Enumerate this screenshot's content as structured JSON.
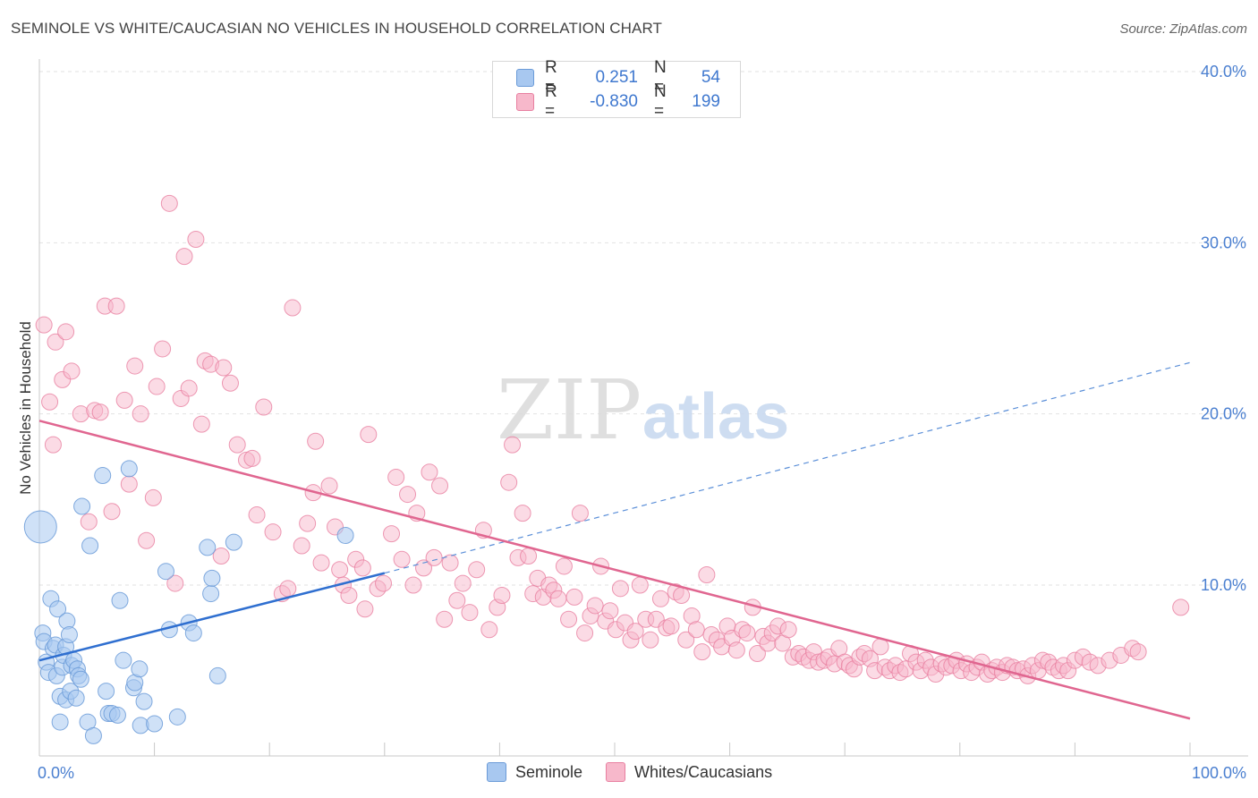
{
  "header": {
    "title": "SEMINOLE VS WHITE/CAUCASIAN NO VEHICLES IN HOUSEHOLD CORRELATION CHART",
    "source": "Source: ZipAtlas.com"
  },
  "watermark": {
    "zip": "ZIP",
    "atlas": "atlas"
  },
  "legend": {
    "rows": [
      {
        "r_label": "R =",
        "r_value": "0.251",
        "n_label": "N =",
        "n_value": "54",
        "color": "#a8c8f0",
        "edge": "#6b9bd8"
      },
      {
        "r_label": "R =",
        "r_value": "-0.830",
        "n_label": "N =",
        "n_value": "199",
        "color": "#f7b8cb",
        "edge": "#e87fa0"
      }
    ]
  },
  "bottom_legend": [
    {
      "label": "Seminole",
      "color": "#a8c8f0",
      "edge": "#6b9bd8"
    },
    {
      "label": "Whites/Caucasians",
      "color": "#f7b8cb",
      "edge": "#e87fa0"
    }
  ],
  "chart_data": {
    "type": "scatter",
    "title": "SEMINOLE VS WHITE/CAUCASIAN NO VEHICLES IN HOUSEHOLD CORRELATION CHART",
    "xlabel": "",
    "ylabel": "No Vehicles in Household",
    "xlim": [
      0,
      100
    ],
    "ylim": [
      0,
      42
    ],
    "x_tick_labels": [
      {
        "value": 0,
        "label": "0.0%"
      },
      {
        "value": 100,
        "label": "100.0%"
      }
    ],
    "y_tick_labels": [
      {
        "value": 10,
        "label": "10.0%"
      },
      {
        "value": 20,
        "label": "20.0%"
      },
      {
        "value": 30,
        "label": "30.0%"
      },
      {
        "value": 40,
        "label": "40.0%"
      }
    ],
    "grid": true,
    "series": [
      {
        "name": "Seminole",
        "color": "#a8c8f0",
        "edge": "#6b9bd8",
        "trend": {
          "x": [
            0,
            30
          ],
          "y": [
            5.6,
            10.7
          ],
          "dashed_extension_to": [
            100,
            23
          ]
        },
        "points": [
          [
            0.1,
            13.4
          ],
          [
            0.3,
            7.2
          ],
          [
            0.4,
            6.7
          ],
          [
            0.6,
            5.5
          ],
          [
            0.8,
            4.9
          ],
          [
            1.0,
            9.2
          ],
          [
            1.2,
            6.3
          ],
          [
            1.4,
            6.5
          ],
          [
            1.5,
            4.7
          ],
          [
            1.6,
            8.6
          ],
          [
            1.8,
            3.5
          ],
          [
            1.8,
            2.0
          ],
          [
            2.0,
            5.2
          ],
          [
            2.1,
            5.9
          ],
          [
            2.3,
            3.3
          ],
          [
            2.3,
            6.4
          ],
          [
            2.4,
            7.9
          ],
          [
            2.6,
            7.1
          ],
          [
            2.7,
            3.8
          ],
          [
            2.8,
            5.3
          ],
          [
            3.0,
            5.6
          ],
          [
            3.2,
            3.4
          ],
          [
            3.3,
            5.1
          ],
          [
            3.4,
            4.7
          ],
          [
            3.6,
            4.5
          ],
          [
            3.7,
            14.6
          ],
          [
            4.2,
            2.0
          ],
          [
            4.4,
            12.3
          ],
          [
            4.7,
            1.2
          ],
          [
            5.5,
            16.4
          ],
          [
            5.8,
            3.8
          ],
          [
            6.0,
            2.5
          ],
          [
            6.3,
            2.5
          ],
          [
            6.8,
            2.4
          ],
          [
            7.0,
            9.1
          ],
          [
            7.3,
            5.6
          ],
          [
            7.8,
            16.8
          ],
          [
            8.2,
            4.0
          ],
          [
            8.3,
            4.3
          ],
          [
            8.7,
            5.1
          ],
          [
            8.8,
            1.8
          ],
          [
            9.1,
            3.2
          ],
          [
            10.0,
            1.9
          ],
          [
            11.0,
            10.8
          ],
          [
            11.3,
            7.4
          ],
          [
            12.0,
            2.3
          ],
          [
            13.0,
            7.8
          ],
          [
            13.4,
            7.2
          ],
          [
            14.6,
            12.2
          ],
          [
            14.9,
            9.5
          ],
          [
            15.0,
            10.4
          ],
          [
            15.5,
            4.7
          ],
          [
            16.9,
            12.5
          ],
          [
            26.6,
            12.9
          ]
        ]
      },
      {
        "name": "Whites/Caucasians",
        "color": "#f7b8cb",
        "edge": "#e87fa0",
        "trend": {
          "x": [
            0,
            100
          ],
          "y": [
            19.6,
            2.2
          ]
        },
        "points": [
          [
            0.4,
            25.2
          ],
          [
            0.9,
            20.7
          ],
          [
            1.2,
            18.2
          ],
          [
            1.4,
            24.2
          ],
          [
            2.0,
            22.0
          ],
          [
            2.3,
            24.8
          ],
          [
            2.8,
            22.5
          ],
          [
            3.6,
            20.0
          ],
          [
            4.3,
            13.7
          ],
          [
            4.8,
            20.2
          ],
          [
            5.3,
            20.1
          ],
          [
            5.7,
            26.3
          ],
          [
            6.3,
            14.3
          ],
          [
            6.7,
            26.3
          ],
          [
            7.4,
            20.8
          ],
          [
            7.8,
            15.9
          ],
          [
            8.3,
            22.8
          ],
          [
            8.8,
            20.0
          ],
          [
            9.3,
            12.6
          ],
          [
            9.9,
            15.1
          ],
          [
            10.2,
            21.6
          ],
          [
            10.7,
            23.8
          ],
          [
            11.3,
            32.3
          ],
          [
            11.8,
            10.1
          ],
          [
            12.3,
            20.9
          ],
          [
            12.6,
            29.2
          ],
          [
            13.0,
            21.5
          ],
          [
            13.6,
            30.2
          ],
          [
            14.1,
            19.4
          ],
          [
            14.4,
            23.1
          ],
          [
            14.9,
            22.9
          ],
          [
            15.8,
            11.7
          ],
          [
            16.0,
            22.7
          ],
          [
            16.6,
            21.8
          ],
          [
            17.2,
            18.2
          ],
          [
            18.0,
            17.3
          ],
          [
            18.5,
            17.4
          ],
          [
            18.9,
            14.1
          ],
          [
            19.5,
            20.4
          ],
          [
            20.3,
            13.1
          ],
          [
            21.1,
            9.5
          ],
          [
            21.6,
            9.8
          ],
          [
            22.0,
            26.2
          ],
          [
            22.8,
            12.3
          ],
          [
            23.3,
            13.6
          ],
          [
            23.8,
            15.4
          ],
          [
            24.0,
            18.4
          ],
          [
            24.5,
            11.3
          ],
          [
            25.2,
            15.8
          ],
          [
            25.7,
            13.4
          ],
          [
            26.1,
            10.9
          ],
          [
            26.4,
            10.0
          ],
          [
            26.9,
            9.4
          ],
          [
            27.5,
            11.5
          ],
          [
            28.1,
            11.0
          ],
          [
            28.3,
            8.6
          ],
          [
            28.6,
            18.8
          ],
          [
            29.4,
            9.8
          ],
          [
            29.9,
            10.1
          ],
          [
            30.6,
            13.0
          ],
          [
            31.0,
            16.3
          ],
          [
            31.5,
            11.5
          ],
          [
            32.0,
            15.3
          ],
          [
            32.5,
            10.0
          ],
          [
            32.8,
            14.2
          ],
          [
            33.4,
            11.0
          ],
          [
            33.9,
            16.6
          ],
          [
            34.3,
            11.6
          ],
          [
            34.8,
            15.8
          ],
          [
            35.2,
            8.0
          ],
          [
            35.7,
            11.3
          ],
          [
            36.3,
            9.1
          ],
          [
            36.8,
            10.1
          ],
          [
            37.4,
            8.4
          ],
          [
            38.0,
            10.9
          ],
          [
            38.6,
            13.2
          ],
          [
            39.1,
            7.4
          ],
          [
            39.8,
            8.7
          ],
          [
            40.2,
            9.4
          ],
          [
            40.8,
            16.0
          ],
          [
            41.1,
            18.2
          ],
          [
            41.6,
            11.6
          ],
          [
            42.0,
            14.2
          ],
          [
            42.5,
            11.7
          ],
          [
            42.9,
            9.5
          ],
          [
            43.3,
            10.4
          ],
          [
            43.8,
            9.3
          ],
          [
            44.3,
            10.0
          ],
          [
            44.7,
            9.7
          ],
          [
            45.1,
            9.2
          ],
          [
            45.6,
            11.1
          ],
          [
            46.0,
            8.0
          ],
          [
            46.5,
            9.3
          ],
          [
            47.0,
            14.2
          ],
          [
            47.4,
            7.2
          ],
          [
            47.9,
            8.2
          ],
          [
            48.3,
            8.8
          ],
          [
            48.8,
            11.1
          ],
          [
            49.2,
            7.9
          ],
          [
            49.6,
            8.5
          ],
          [
            50.1,
            7.4
          ],
          [
            50.5,
            9.8
          ],
          [
            50.9,
            7.8
          ],
          [
            51.4,
            6.8
          ],
          [
            51.8,
            7.3
          ],
          [
            52.2,
            10.0
          ],
          [
            52.7,
            8.0
          ],
          [
            53.1,
            6.8
          ],
          [
            53.6,
            8.0
          ],
          [
            54.0,
            9.2
          ],
          [
            54.5,
            7.5
          ],
          [
            54.9,
            7.6
          ],
          [
            55.3,
            9.6
          ],
          [
            55.8,
            9.4
          ],
          [
            56.2,
            6.8
          ],
          [
            56.7,
            8.2
          ],
          [
            57.1,
            7.4
          ],
          [
            57.6,
            6.1
          ],
          [
            58.0,
            10.6
          ],
          [
            58.4,
            7.1
          ],
          [
            58.9,
            6.8
          ],
          [
            59.3,
            6.4
          ],
          [
            59.8,
            7.6
          ],
          [
            60.2,
            6.9
          ],
          [
            60.6,
            6.2
          ],
          [
            61.1,
            7.4
          ],
          [
            61.5,
            7.2
          ],
          [
            62.0,
            8.7
          ],
          [
            62.4,
            6.0
          ],
          [
            62.9,
            7.0
          ],
          [
            63.3,
            6.6
          ],
          [
            63.7,
            7.2
          ],
          [
            64.2,
            7.6
          ],
          [
            64.6,
            6.6
          ],
          [
            65.1,
            7.4
          ],
          [
            65.5,
            5.8
          ],
          [
            66.0,
            6.0
          ],
          [
            66.4,
            5.8
          ],
          [
            66.9,
            5.6
          ],
          [
            67.3,
            6.1
          ],
          [
            67.7,
            5.5
          ],
          [
            68.2,
            5.6
          ],
          [
            68.6,
            5.8
          ],
          [
            69.1,
            5.4
          ],
          [
            69.5,
            6.3
          ],
          [
            70.0,
            5.5
          ],
          [
            70.4,
            5.3
          ],
          [
            70.8,
            5.1
          ],
          [
            71.3,
            5.8
          ],
          [
            71.7,
            6.0
          ],
          [
            72.2,
            5.7
          ],
          [
            72.6,
            5.0
          ],
          [
            73.1,
            6.4
          ],
          [
            73.5,
            5.2
          ],
          [
            73.9,
            5.0
          ],
          [
            74.4,
            5.3
          ],
          [
            74.8,
            4.9
          ],
          [
            75.3,
            5.1
          ],
          [
            75.7,
            6.0
          ],
          [
            76.2,
            5.5
          ],
          [
            76.6,
            5.0
          ],
          [
            77.0,
            5.6
          ],
          [
            77.5,
            5.2
          ],
          [
            77.9,
            4.8
          ],
          [
            78.4,
            5.4
          ],
          [
            78.8,
            5.2
          ],
          [
            79.3,
            5.3
          ],
          [
            79.7,
            5.6
          ],
          [
            80.1,
            5.0
          ],
          [
            80.6,
            5.4
          ],
          [
            81.0,
            4.9
          ],
          [
            81.5,
            5.2
          ],
          [
            81.9,
            5.5
          ],
          [
            82.4,
            4.8
          ],
          [
            82.8,
            5.0
          ],
          [
            83.2,
            5.2
          ],
          [
            83.7,
            4.9
          ],
          [
            84.1,
            5.3
          ],
          [
            84.6,
            5.2
          ],
          [
            85.0,
            5.0
          ],
          [
            85.5,
            5.1
          ],
          [
            85.9,
            4.7
          ],
          [
            86.3,
            5.3
          ],
          [
            86.8,
            5.0
          ],
          [
            87.2,
            5.6
          ],
          [
            87.7,
            5.5
          ],
          [
            88.1,
            5.2
          ],
          [
            88.6,
            5.0
          ],
          [
            89.0,
            5.3
          ],
          [
            89.4,
            5.0
          ],
          [
            90.0,
            5.6
          ],
          [
            90.7,
            5.8
          ],
          [
            91.3,
            5.5
          ],
          [
            92.0,
            5.3
          ],
          [
            93.0,
            5.6
          ],
          [
            94.0,
            5.9
          ],
          [
            95.0,
            6.3
          ],
          [
            95.5,
            6.1
          ],
          [
            99.2,
            8.7
          ]
        ]
      }
    ]
  }
}
